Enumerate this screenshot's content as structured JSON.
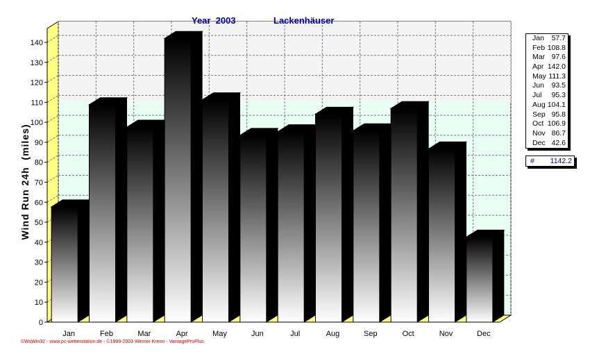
{
  "chart_data": {
    "type": "bar",
    "title_year": "Year  2003",
    "title_location": "Lackenhäuser",
    "ylabel": "Wind Run 24h  (miles)",
    "categories": [
      "Jan",
      "Feb",
      "Mar",
      "Apr",
      "May",
      "Jun",
      "Jul",
      "Aug",
      "Sep",
      "Oct",
      "Nov",
      "Dec"
    ],
    "values": [
      57.7,
      108.8,
      97.6,
      142.0,
      111.3,
      93.5,
      95.3,
      104.1,
      95.8,
      106.9,
      86.7,
      42.6
    ],
    "ylim": [
      0,
      140
    ],
    "yticks": [
      0,
      10,
      20,
      30,
      40,
      50,
      60,
      70,
      80,
      90,
      100,
      110,
      120,
      130,
      140
    ],
    "grid": true,
    "legend": {
      "placement": "right",
      "rows": [
        {
          "month": "Jan",
          "value": "57.7"
        },
        {
          "month": "Feb",
          "value": "108.8"
        },
        {
          "month": "Mar",
          "value": "97.6"
        },
        {
          "month": "Apr",
          "value": "142.0"
        },
        {
          "month": "May",
          "value": "111.3"
        },
        {
          "month": "Jun",
          "value": "93.5"
        },
        {
          "month": "Jul",
          "value": "95.3"
        },
        {
          "month": "Aug",
          "value": "104.1"
        },
        {
          "month": "Sep",
          "value": "95.8"
        },
        {
          "month": "Oct",
          "value": "106.9"
        },
        {
          "month": "Nov",
          "value": "86.7"
        },
        {
          "month": "Dec",
          "value": "42.6"
        }
      ],
      "total_symbol": "#",
      "total_value": "1142.2"
    },
    "footer": "©WsWin32 - www.pc-wetterstation.de - ©1999-2003 Werner Krenn - VantageProPlus",
    "colors": {
      "title": "#0000aa",
      "footer": "#cc0000",
      "wall": "#f4f4f4",
      "wall_lower": "#e8fff4",
      "floor": "#ffff80",
      "bar_dark": "#000000",
      "bar_light": "#ffffff"
    }
  }
}
